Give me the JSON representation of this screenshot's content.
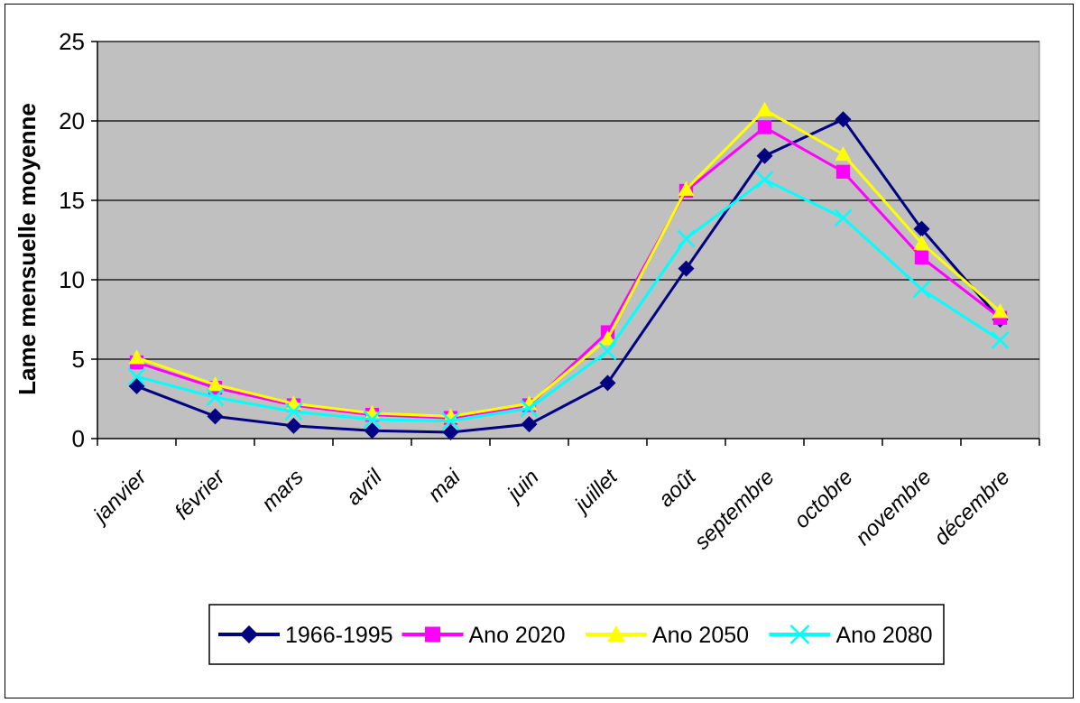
{
  "chart_data": {
    "type": "line",
    "title": "",
    "xlabel": "",
    "ylabel": "Lame mensuelle moyenne",
    "ylim": [
      0,
      25
    ],
    "yticks": [
      0,
      5,
      10,
      15,
      20,
      25
    ],
    "grid": true,
    "legend_position": "bottom",
    "plot_background": "#c0c0c0",
    "categories": [
      "janvier",
      "février",
      "mars",
      "avril",
      "mai",
      "juin",
      "juillet",
      "août",
      "septembre",
      "octobre",
      "novembre",
      "décembre"
    ],
    "series": [
      {
        "name": "1966-1995",
        "color": "#000080",
        "marker": "diamond",
        "values": [
          3.3,
          1.4,
          0.8,
          0.5,
          0.4,
          0.9,
          3.5,
          10.7,
          17.8,
          20.1,
          13.2,
          7.5
        ]
      },
      {
        "name": "Ano 2020",
        "color": "#ff00ff",
        "marker": "square",
        "values": [
          4.8,
          3.2,
          2.1,
          1.5,
          1.3,
          2.1,
          6.7,
          15.6,
          19.6,
          16.8,
          11.4,
          7.6
        ]
      },
      {
        "name": "Ano 2050",
        "color": "#ffff00",
        "marker": "triangle",
        "values": [
          5.1,
          3.4,
          2.2,
          1.6,
          1.4,
          2.2,
          6.3,
          15.7,
          20.7,
          17.9,
          12.3,
          8.0
        ]
      },
      {
        "name": "Ano 2080",
        "color": "#00ffff",
        "marker": "x",
        "values": [
          3.9,
          2.6,
          1.7,
          1.2,
          1.1,
          1.9,
          5.5,
          12.6,
          16.3,
          13.9,
          9.4,
          6.2
        ]
      }
    ]
  }
}
